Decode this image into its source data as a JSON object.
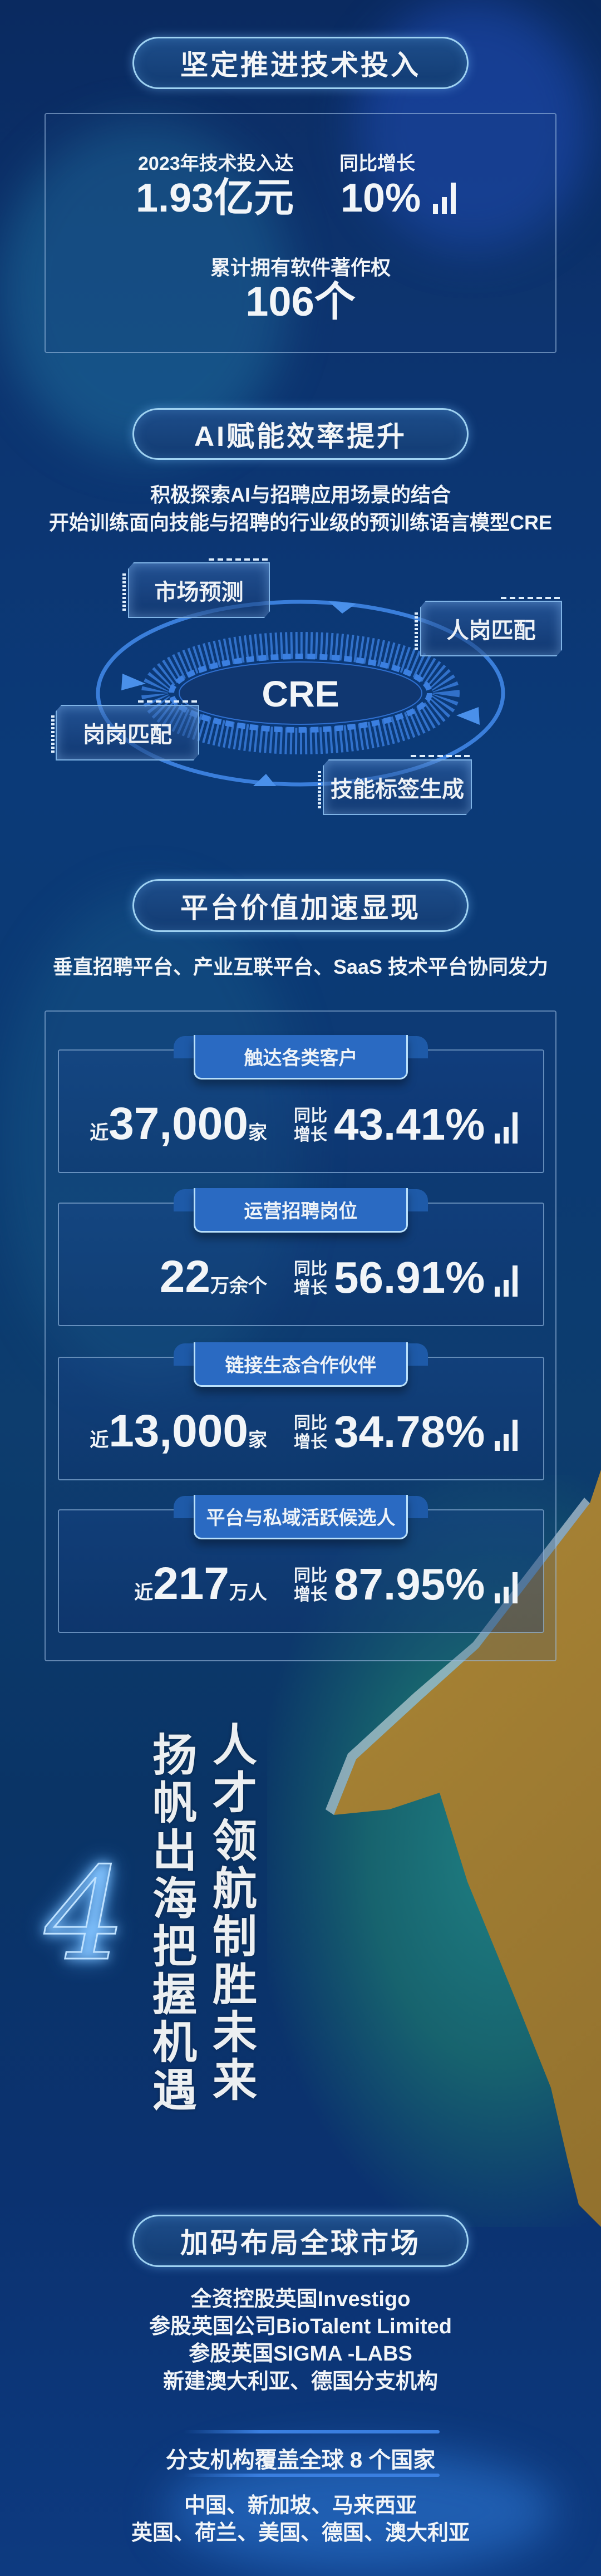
{
  "colors": {
    "background": "#0b3470",
    "pill_border": "#9fd2f2",
    "tab_fill": "#2a6ac2",
    "accent_blue": "#3a7fe0",
    "coast_gold": "#c9a347",
    "sea_teal": "#1a7078"
  },
  "section_tech": {
    "title": "坚定推进技术投入",
    "invest_label": "2023年技术投入达",
    "invest_value": "1.93亿元",
    "growth_label": "同比增长",
    "growth_value": "10%",
    "growth_icon": "bar-chart-icon",
    "copyright_label": "累计拥有软件著作权",
    "copyright_value": "106个"
  },
  "section_ai": {
    "title": "AI赋能效率提升",
    "subtitle_1": "积极探索AI与招聘应用场景的结合",
    "subtitle_2": "开始训练面向技能与招聘的行业级的预训练语言模型CRE",
    "center": "CRE",
    "nodes": [
      "市场预测",
      "人岗匹配",
      "岗岗匹配",
      "技能标签生成"
    ]
  },
  "section_platform": {
    "title": "平台价值加速显现",
    "subtitle": "垂直招聘平台、产业互联平台、SaaS 技术平台协同发力",
    "yoy_top": "同比",
    "yoy_bottom": "增长",
    "cards": [
      {
        "tab": "触达各类客户",
        "prefix": "近",
        "value": "37,000",
        "unit": "家",
        "growth": "43.41%"
      },
      {
        "tab": "运营招聘岗位",
        "prefix": "",
        "value": "22",
        "unit": "万余个",
        "growth": "56.91%"
      },
      {
        "tab": "链接生态合作伙伴",
        "prefix": "近",
        "value": "13,000",
        "unit": "家",
        "growth": "34.78%"
      },
      {
        "tab": "平台与私域活跃候选人",
        "prefix": "近",
        "value": "217",
        "unit": "万人",
        "growth": "87.95%"
      }
    ]
  },
  "section_slogan": {
    "number": "4",
    "column_left": "扬帆出海把握机遇",
    "column_right": "人才领航制胜未来"
  },
  "section_global": {
    "title": "加码布局全球市场",
    "lines": [
      "全资控股英国Investigo",
      "参股英国公司BioTalent Limited",
      "参股英国SIGMA -LABS",
      "新建澳大利亚、德国分支机构"
    ],
    "coverage": "分支机构覆盖全球 8 个国家",
    "countries": [
      "中国、新加坡、马来西亚",
      "英国、荷兰、美国、德国、澳大利亚"
    ]
  }
}
